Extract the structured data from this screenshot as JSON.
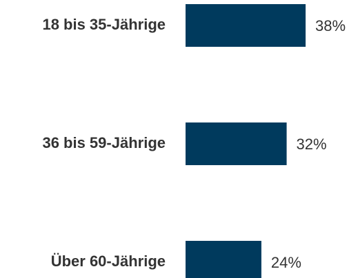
{
  "chart_data": {
    "type": "hbar",
    "categories": [
      "18 bis 35-Jährige",
      "36 bis 59-Jährige",
      "Über 60-Jährige"
    ],
    "values": [
      38,
      32,
      24
    ],
    "value_labels": [
      "38%",
      "32%",
      "24%"
    ],
    "color": "#003a5d"
  }
}
